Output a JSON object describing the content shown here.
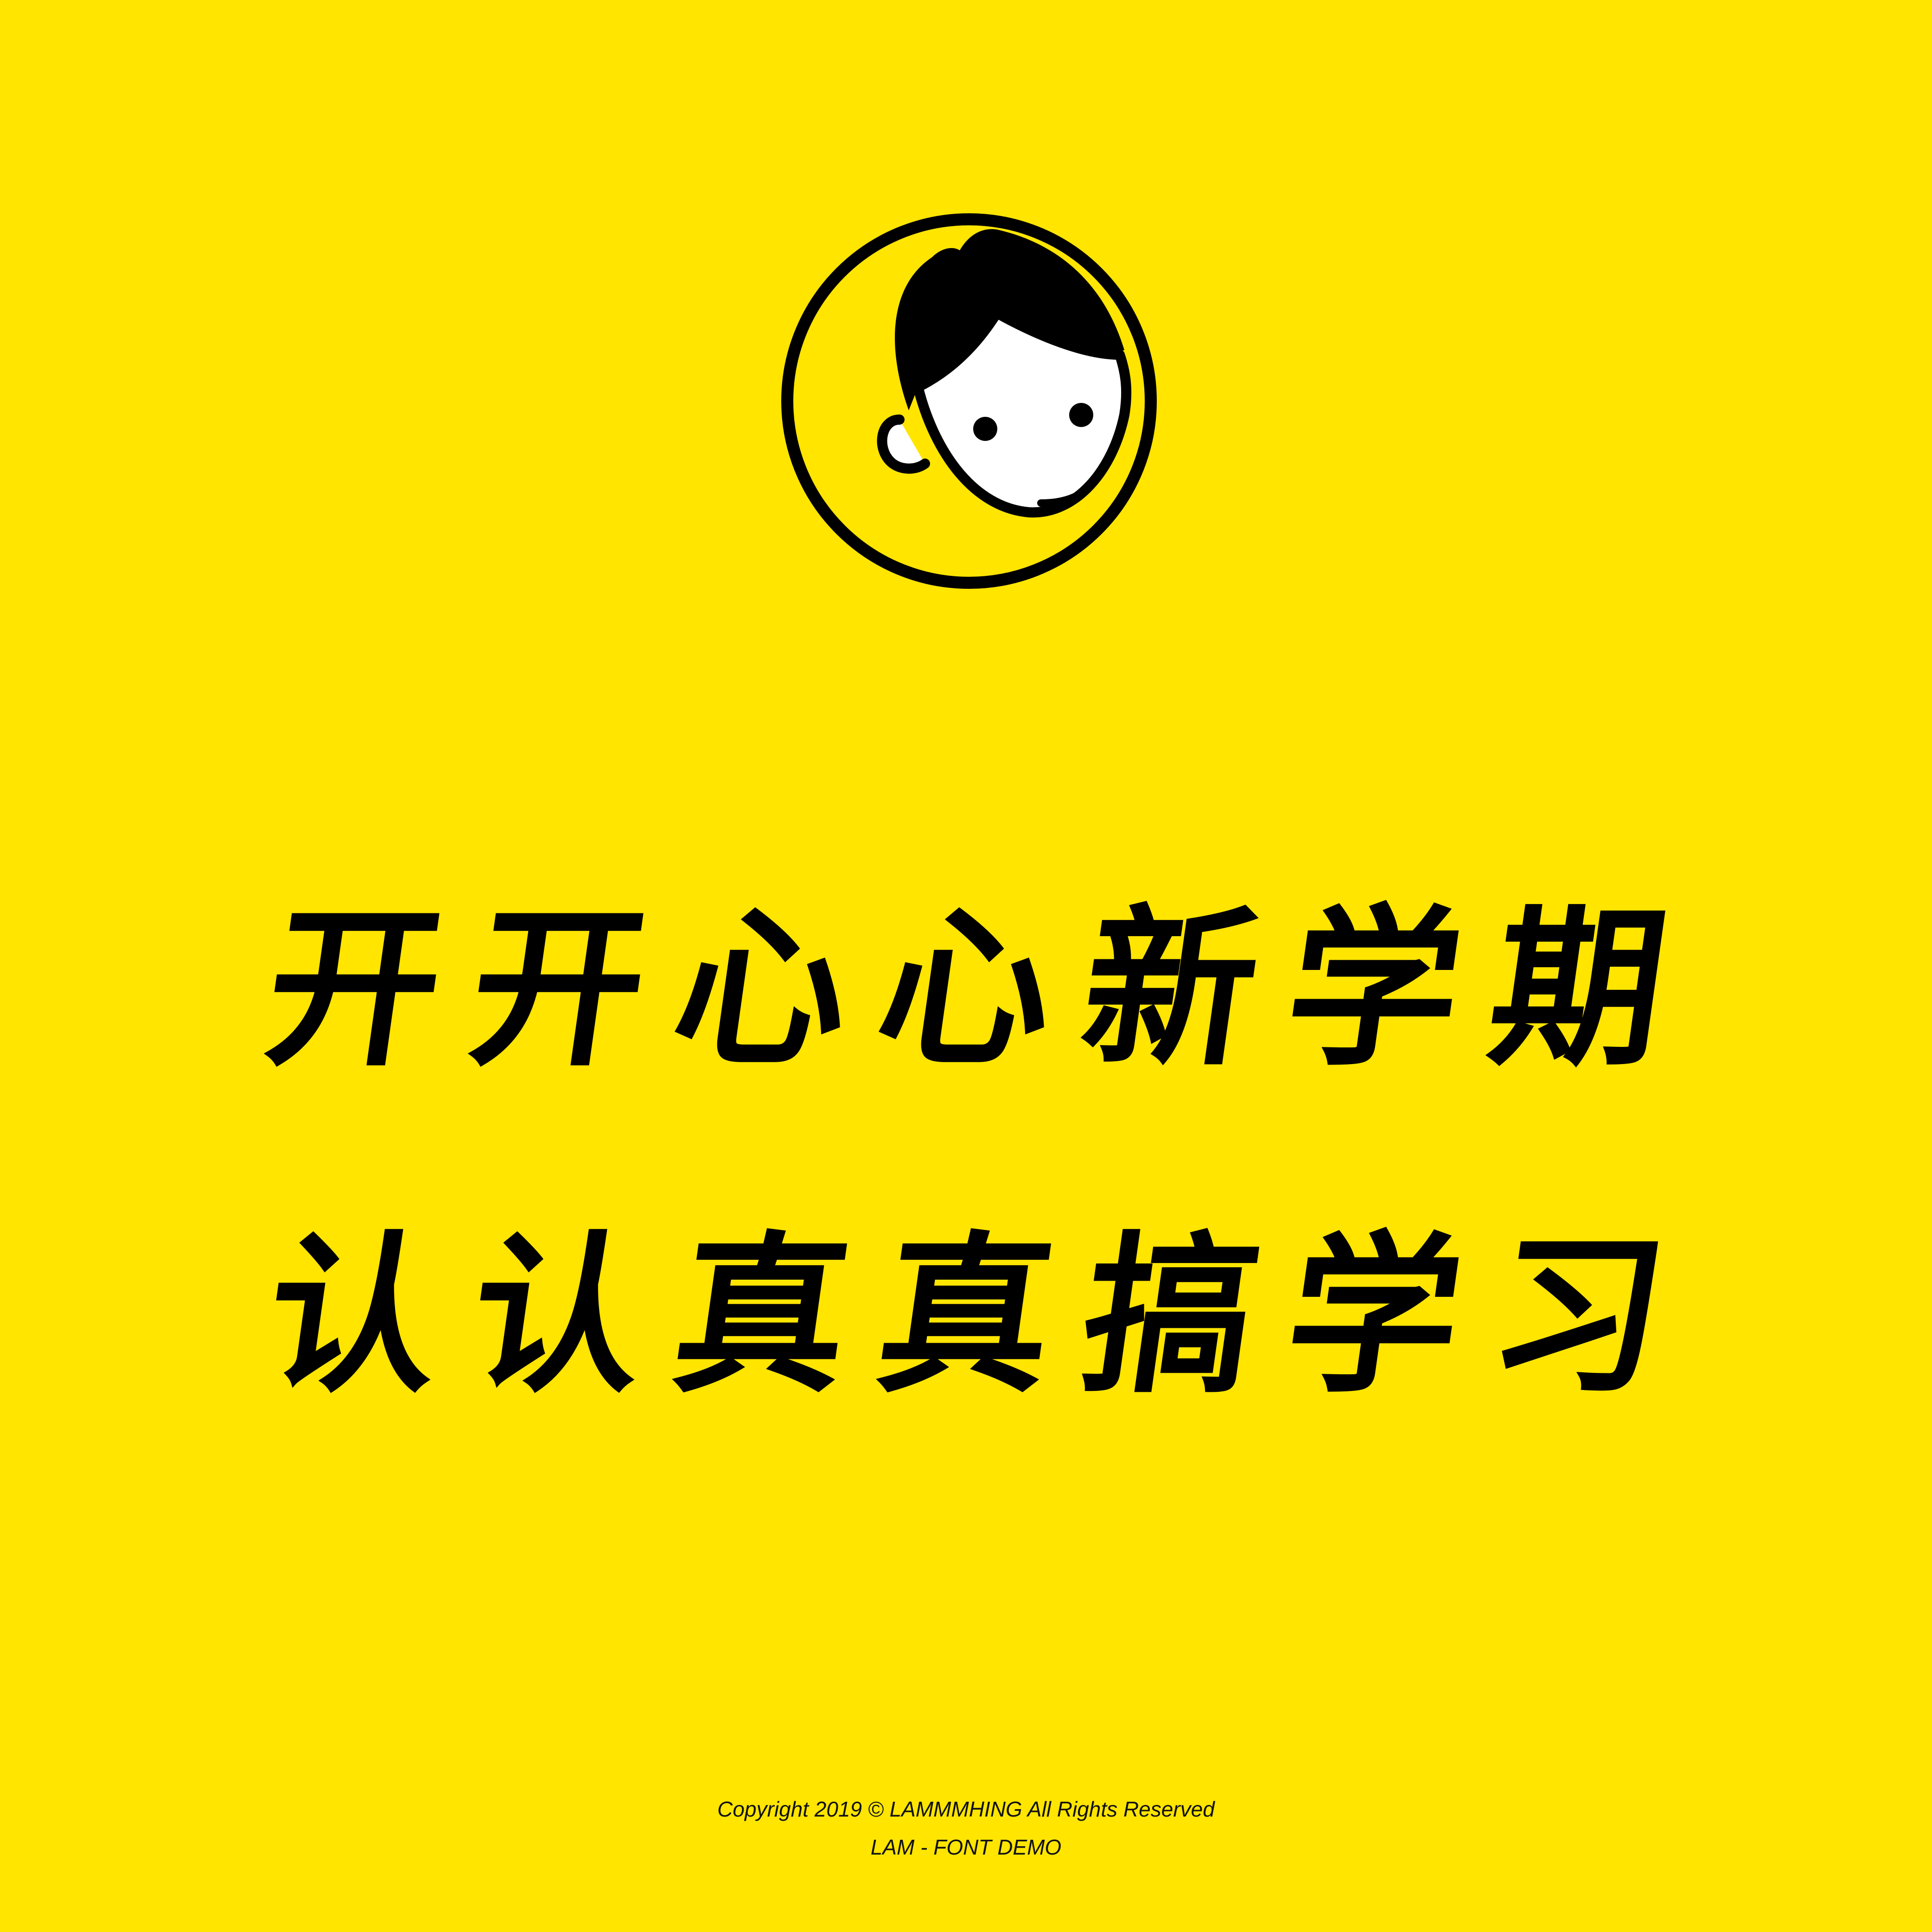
{
  "background_color": "#FFE500",
  "logo": {
    "icon": "smiling-girl-avatar-icon",
    "stroke_color": "#000000",
    "face_color": "#FFFFFF"
  },
  "headline": {
    "line1": [
      "开",
      "开",
      "心",
      "心",
      "新",
      "学",
      "期"
    ],
    "line2": [
      "认",
      "认",
      "真",
      "真",
      "搞",
      "学",
      "习"
    ]
  },
  "footer": {
    "copyright": "Copyright 2019 © LAMMMHING All Rights Reserved",
    "demo_label": "LAM - FONT DEMO"
  }
}
